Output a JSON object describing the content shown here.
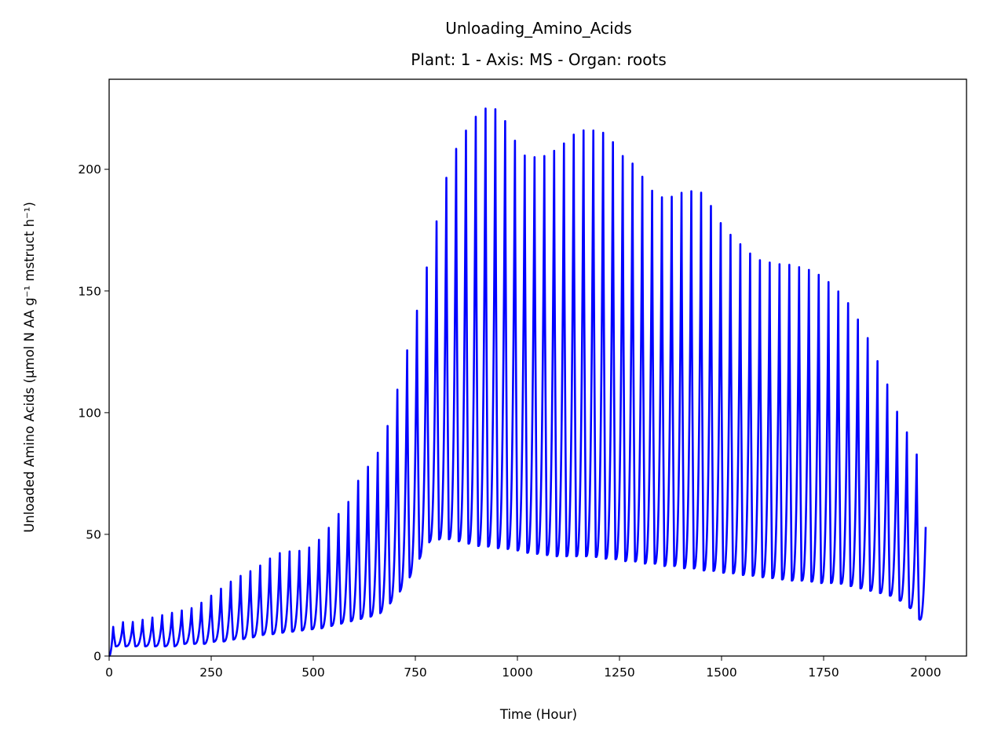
{
  "chart_data": {
    "type": "line",
    "title": "Unloading_Amino_Acids",
    "subtitle": "Plant: 1 - Axis: MS - Organ: roots",
    "xlabel": "Time (Hour)",
    "ylabel": "Unloaded Amino Acids (µmol N AA g⁻¹ mstruct h⁻¹)",
    "xlim": [
      0,
      2100
    ],
    "ylim": [
      0,
      237
    ],
    "xticks": [
      0,
      250,
      500,
      750,
      1000,
      1250,
      1500,
      1750,
      2000
    ],
    "yticks": [
      0,
      50,
      100,
      150,
      200
    ],
    "grid": false,
    "legend": "none",
    "series": [
      {
        "color": "#0000ff",
        "period_hours": 24,
        "note": "daily oscillation between trough and peak envelopes",
        "x": [
          0,
          10,
          35,
          60,
          85,
          110,
          135,
          160,
          185,
          210,
          235,
          260,
          285,
          310,
          335,
          360,
          385,
          410,
          435,
          460,
          485,
          510,
          535,
          560,
          585,
          610,
          635,
          660,
          685,
          710,
          735,
          760,
          785,
          810,
          835,
          860,
          885,
          910,
          935,
          960,
          985,
          1010,
          1035,
          1060,
          1085,
          1110,
          1135,
          1160,
          1185,
          1210,
          1235,
          1260,
          1285,
          1310,
          1335,
          1360,
          1385,
          1410,
          1435,
          1460,
          1485,
          1510,
          1535,
          1560,
          1585,
          1610,
          1635,
          1660,
          1685,
          1710,
          1735,
          1760,
          1785,
          1810,
          1835,
          1860,
          1885,
          1910,
          1935,
          1960,
          1985,
          2000
        ],
        "peaks": [
          0,
          12,
          14,
          14,
          15,
          16,
          17,
          18,
          19,
          20,
          23,
          26,
          29,
          32,
          34,
          36,
          39,
          42,
          43,
          43,
          44,
          47,
          52,
          58,
          63,
          72,
          78,
          84,
          96,
          112,
          129,
          146,
          165,
          185,
          203,
          212,
          219,
          224,
          226,
          223,
          215,
          206,
          205,
          205,
          207,
          210,
          214,
          216,
          216,
          215,
          211,
          205,
          202,
          196,
          190,
          188,
          189,
          191,
          191,
          190,
          181,
          175,
          171,
          167,
          163,
          162,
          161,
          161,
          160,
          159,
          157,
          154,
          150,
          145,
          138,
          130,
          120,
          110,
          98,
          90,
          80,
          70
        ],
        "troughs": [
          0,
          4,
          4,
          4,
          4,
          4,
          4,
          4,
          5,
          5,
          5,
          6,
          6,
          7,
          7,
          8,
          9,
          9,
          10,
          10,
          11,
          11,
          12,
          13,
          14,
          15,
          16,
          17,
          21,
          26,
          32,
          40,
          47,
          48,
          48,
          47,
          46,
          45,
          45,
          44,
          44,
          43,
          42,
          42,
          41,
          41,
          41,
          41,
          41,
          40,
          40,
          39,
          39,
          38,
          38,
          37,
          37,
          36,
          36,
          35,
          35,
          34,
          34,
          33,
          33,
          32,
          32,
          31,
          31,
          31,
          30,
          30,
          30,
          29,
          28,
          27,
          26,
          25,
          23,
          20,
          15,
          13
        ]
      }
    ]
  }
}
